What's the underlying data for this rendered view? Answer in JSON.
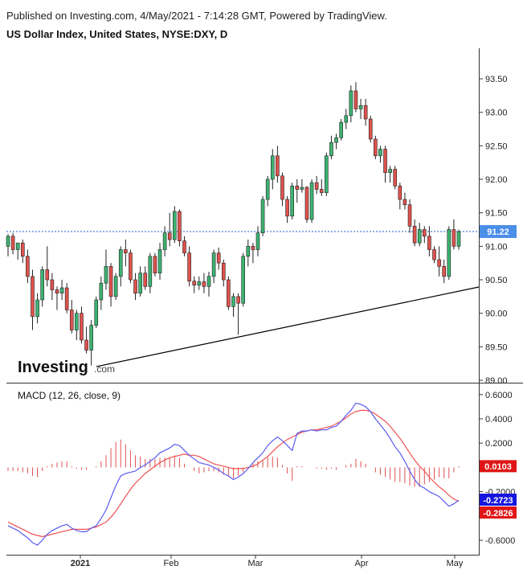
{
  "header": {
    "published": "Published on Investing.com, 4/May/2021 - 7:14:28 GMT, Powered by TradingView.",
    "title": "US Dollar Index, United States, NYSE:DXY, D"
  },
  "logo": "Investing",
  "logo_suffix": ".com",
  "colors": {
    "up": "#3cb371",
    "down": "#e0524d",
    "macd_line": "#5b5bf0",
    "signal_line": "#f05050",
    "histogram": "#e05050",
    "trendline": "#000000",
    "price_badge": "#4a8fe8",
    "macd_badge": "#1515e0",
    "signal_badge": "#e01515"
  },
  "chart_data": [
    {
      "type": "candlestick",
      "title": "US Dollar Index, United States, NYSE:DXY, D",
      "ylim": [
        89.0,
        93.75
      ],
      "y_ticks": [
        "93.50",
        "93.00",
        "92.50",
        "92.00",
        "91.50",
        "91.00",
        "90.50",
        "90.00",
        "89.50",
        "89.00"
      ],
      "x_ticks": [
        "2021",
        "Feb",
        "Mar",
        "Apr",
        "May"
      ],
      "last_price": "91.22",
      "candles": [
        {
          "o": 91.0,
          "h": 91.18,
          "l": 90.85,
          "c": 91.15
        },
        {
          "o": 91.15,
          "h": 91.2,
          "l": 90.88,
          "c": 90.95
        },
        {
          "o": 90.95,
          "h": 91.05,
          "l": 90.8,
          "c": 91.05
        },
        {
          "o": 91.05,
          "h": 91.1,
          "l": 90.75,
          "c": 90.85
        },
        {
          "o": 90.85,
          "h": 90.95,
          "l": 90.45,
          "c": 90.55
        },
        {
          "o": 90.55,
          "h": 90.65,
          "l": 89.75,
          "c": 89.95
        },
        {
          "o": 89.95,
          "h": 90.3,
          "l": 89.85,
          "c": 90.2
        },
        {
          "o": 90.2,
          "h": 90.7,
          "l": 90.1,
          "c": 90.65
        },
        {
          "o": 90.65,
          "h": 91.0,
          "l": 90.4,
          "c": 90.5
        },
        {
          "o": 90.5,
          "h": 90.6,
          "l": 90.2,
          "c": 90.35
        },
        {
          "o": 90.35,
          "h": 90.4,
          "l": 90.05,
          "c": 90.3
        },
        {
          "o": 90.3,
          "h": 90.5,
          "l": 90.2,
          "c": 90.38
        },
        {
          "o": 90.38,
          "h": 90.45,
          "l": 90.0,
          "c": 90.05
        },
        {
          "o": 90.05,
          "h": 90.2,
          "l": 89.7,
          "c": 89.75
        },
        {
          "o": 89.75,
          "h": 90.05,
          "l": 89.6,
          "c": 90.0
        },
        {
          "o": 90.0,
          "h": 90.1,
          "l": 89.55,
          "c": 89.6
        },
        {
          "o": 89.6,
          "h": 89.8,
          "l": 89.4,
          "c": 89.45
        },
        {
          "o": 89.45,
          "h": 89.9,
          "l": 89.22,
          "c": 89.82
        },
        {
          "o": 89.82,
          "h": 90.25,
          "l": 89.78,
          "c": 90.2
        },
        {
          "o": 90.2,
          "h": 90.55,
          "l": 90.05,
          "c": 90.45
        },
        {
          "o": 90.45,
          "h": 90.95,
          "l": 90.35,
          "c": 90.7
        },
        {
          "o": 90.7,
          "h": 90.75,
          "l": 90.1,
          "c": 90.25
        },
        {
          "o": 90.25,
          "h": 90.6,
          "l": 90.2,
          "c": 90.55
        },
        {
          "o": 90.55,
          "h": 91.0,
          "l": 90.4,
          "c": 90.95
        },
        {
          "o": 90.95,
          "h": 91.1,
          "l": 90.7,
          "c": 90.9
        },
        {
          "o": 90.9,
          "h": 90.95,
          "l": 90.45,
          "c": 90.5
        },
        {
          "o": 90.5,
          "h": 90.6,
          "l": 90.2,
          "c": 90.3
        },
        {
          "o": 90.3,
          "h": 90.7,
          "l": 90.25,
          "c": 90.6
        },
        {
          "o": 90.6,
          "h": 90.7,
          "l": 90.35,
          "c": 90.4
        },
        {
          "o": 90.4,
          "h": 90.9,
          "l": 90.3,
          "c": 90.85
        },
        {
          "o": 90.85,
          "h": 90.9,
          "l": 90.55,
          "c": 90.6
        },
        {
          "o": 90.6,
          "h": 91.05,
          "l": 90.5,
          "c": 90.95
        },
        {
          "o": 90.95,
          "h": 91.3,
          "l": 90.85,
          "c": 91.2
        },
        {
          "o": 91.2,
          "h": 91.5,
          "l": 91.0,
          "c": 91.1
        },
        {
          "o": 91.1,
          "h": 91.6,
          "l": 91.05,
          "c": 91.52
        },
        {
          "o": 91.52,
          "h": 91.55,
          "l": 91.0,
          "c": 91.08
        },
        {
          "o": 91.08,
          "h": 91.15,
          "l": 90.85,
          "c": 90.9
        },
        {
          "o": 90.9,
          "h": 91.0,
          "l": 90.4,
          "c": 90.48
        },
        {
          "o": 90.48,
          "h": 90.55,
          "l": 90.3,
          "c": 90.42
        },
        {
          "o": 90.42,
          "h": 90.55,
          "l": 90.35,
          "c": 90.47
        },
        {
          "o": 90.47,
          "h": 90.6,
          "l": 90.3,
          "c": 90.4
        },
        {
          "o": 90.4,
          "h": 90.62,
          "l": 90.25,
          "c": 90.55
        },
        {
          "o": 90.55,
          "h": 90.95,
          "l": 90.45,
          "c": 90.9
        },
        {
          "o": 90.9,
          "h": 90.98,
          "l": 90.65,
          "c": 90.75
        },
        {
          "o": 90.75,
          "h": 90.8,
          "l": 90.4,
          "c": 90.5
        },
        {
          "o": 90.5,
          "h": 90.55,
          "l": 90.05,
          "c": 90.1
        },
        {
          "o": 90.1,
          "h": 90.3,
          "l": 89.95,
          "c": 90.25
        },
        {
          "o": 90.25,
          "h": 90.3,
          "l": 89.68,
          "c": 90.15
        },
        {
          "o": 90.15,
          "h": 90.9,
          "l": 90.1,
          "c": 90.85
        },
        {
          "o": 90.85,
          "h": 91.1,
          "l": 90.7,
          "c": 91.0
        },
        {
          "o": 91.0,
          "h": 91.05,
          "l": 90.75,
          "c": 90.95
        },
        {
          "o": 90.95,
          "h": 91.3,
          "l": 90.85,
          "c": 91.2
        },
        {
          "o": 91.2,
          "h": 91.75,
          "l": 91.15,
          "c": 91.7
        },
        {
          "o": 91.7,
          "h": 92.05,
          "l": 91.6,
          "c": 92.0
        },
        {
          "o": 92.0,
          "h": 92.45,
          "l": 91.85,
          "c": 92.35
        },
        {
          "o": 92.35,
          "h": 92.5,
          "l": 91.95,
          "c": 92.05
        },
        {
          "o": 92.05,
          "h": 92.1,
          "l": 91.6,
          "c": 91.7
        },
        {
          "o": 91.7,
          "h": 91.75,
          "l": 91.35,
          "c": 91.45
        },
        {
          "o": 91.45,
          "h": 91.95,
          "l": 91.4,
          "c": 91.9
        },
        {
          "o": 91.9,
          "h": 92.0,
          "l": 91.65,
          "c": 91.85
        },
        {
          "o": 91.85,
          "h": 92.0,
          "l": 91.8,
          "c": 91.88
        },
        {
          "o": 91.88,
          "h": 91.9,
          "l": 91.35,
          "c": 91.4
        },
        {
          "o": 91.4,
          "h": 92.0,
          "l": 91.35,
          "c": 91.95
        },
        {
          "o": 91.95,
          "h": 92.05,
          "l": 91.78,
          "c": 91.85
        },
        {
          "o": 91.85,
          "h": 92.0,
          "l": 91.75,
          "c": 91.8
        },
        {
          "o": 91.8,
          "h": 92.4,
          "l": 91.75,
          "c": 92.35
        },
        {
          "o": 92.35,
          "h": 92.65,
          "l": 92.3,
          "c": 92.55
        },
        {
          "o": 92.55,
          "h": 92.68,
          "l": 92.45,
          "c": 92.62
        },
        {
          "o": 92.62,
          "h": 92.9,
          "l": 92.58,
          "c": 92.85
        },
        {
          "o": 92.85,
          "h": 93.05,
          "l": 92.75,
          "c": 92.95
        },
        {
          "o": 92.95,
          "h": 93.4,
          "l": 92.85,
          "c": 93.32
        },
        {
          "o": 93.32,
          "h": 93.45,
          "l": 93.0,
          "c": 93.05
        },
        {
          "o": 93.05,
          "h": 93.2,
          "l": 92.9,
          "c": 93.1
        },
        {
          "o": 93.1,
          "h": 93.2,
          "l": 92.8,
          "c": 92.9
        },
        {
          "o": 92.9,
          "h": 92.95,
          "l": 92.55,
          "c": 92.6
        },
        {
          "o": 92.6,
          "h": 92.65,
          "l": 92.3,
          "c": 92.35
        },
        {
          "o": 92.35,
          "h": 92.5,
          "l": 92.25,
          "c": 92.45
        },
        {
          "o": 92.45,
          "h": 92.5,
          "l": 91.95,
          "c": 92.1
        },
        {
          "o": 92.1,
          "h": 92.2,
          "l": 91.95,
          "c": 92.15
        },
        {
          "o": 92.15,
          "h": 92.2,
          "l": 91.85,
          "c": 91.9
        },
        {
          "o": 91.9,
          "h": 91.95,
          "l": 91.55,
          "c": 91.7
        },
        {
          "o": 91.7,
          "h": 91.8,
          "l": 91.55,
          "c": 91.62
        },
        {
          "o": 91.62,
          "h": 91.7,
          "l": 91.2,
          "c": 91.3
        },
        {
          "o": 91.3,
          "h": 91.4,
          "l": 91.0,
          "c": 91.05
        },
        {
          "o": 91.05,
          "h": 91.35,
          "l": 91.0,
          "c": 91.25
        },
        {
          "o": 91.25,
          "h": 91.3,
          "l": 91.05,
          "c": 91.15
        },
        {
          "o": 91.15,
          "h": 91.3,
          "l": 90.85,
          "c": 90.95
        },
        {
          "o": 90.95,
          "h": 91.0,
          "l": 90.75,
          "c": 90.8
        },
        {
          "o": 90.8,
          "h": 91.0,
          "l": 90.55,
          "c": 90.7
        },
        {
          "o": 90.7,
          "h": 90.8,
          "l": 90.45,
          "c": 90.55
        },
        {
          "o": 90.55,
          "h": 91.3,
          "l": 90.5,
          "c": 91.25
        },
        {
          "o": 91.25,
          "h": 91.4,
          "l": 90.95,
          "c": 91.0
        },
        {
          "o": 91.0,
          "h": 91.25,
          "l": 90.95,
          "c": 91.22
        }
      ]
    },
    {
      "type": "line",
      "title": "MACD (12, 26, close, 9)",
      "ylim": [
        -0.72,
        0.65
      ],
      "y_ticks": [
        "0.6000",
        "0.4000",
        "0.2000",
        "-0.2000",
        "-0.6000"
      ],
      "x_ticks": [
        "2021",
        "Feb",
        "Mar",
        "Apr",
        "May"
      ],
      "last_values": {
        "histogram": "0.0103",
        "macd": "-0.2723",
        "signal": "-0.2826"
      },
      "series": [
        {
          "name": "MACD",
          "values": [
            -0.48,
            -0.5,
            -0.52,
            -0.55,
            -0.58,
            -0.62,
            -0.64,
            -0.6,
            -0.55,
            -0.52,
            -0.5,
            -0.48,
            -0.47,
            -0.5,
            -0.52,
            -0.53,
            -0.53,
            -0.5,
            -0.48,
            -0.42,
            -0.35,
            -0.25,
            -0.15,
            -0.07,
            -0.05,
            -0.04,
            -0.03,
            0.0,
            0.02,
            0.05,
            0.08,
            0.12,
            0.14,
            0.16,
            0.19,
            0.18,
            0.14,
            0.1,
            0.07,
            0.04,
            0.03,
            0.02,
            0.0,
            -0.02,
            -0.05,
            -0.07,
            -0.1,
            -0.08,
            -0.05,
            -0.01,
            0.04,
            0.08,
            0.12,
            0.18,
            0.22,
            0.25,
            0.22,
            0.18,
            0.14,
            0.28,
            0.3,
            0.3,
            0.31,
            0.3,
            0.31,
            0.31,
            0.33,
            0.34,
            0.38,
            0.43,
            0.47,
            0.53,
            0.52,
            0.5,
            0.46,
            0.4,
            0.35,
            0.3,
            0.24,
            0.17,
            0.12,
            0.05,
            -0.03,
            -0.1,
            -0.15,
            -0.17,
            -0.2,
            -0.22,
            -0.24,
            -0.28,
            -0.32,
            -0.3,
            -0.27
          ]
        },
        {
          "name": "Signal",
          "values": [
            -0.45,
            -0.47,
            -0.49,
            -0.51,
            -0.53,
            -0.55,
            -0.56,
            -0.57,
            -0.56,
            -0.55,
            -0.54,
            -0.53,
            -0.52,
            -0.51,
            -0.51,
            -0.51,
            -0.51,
            -0.5,
            -0.49,
            -0.47,
            -0.45,
            -0.41,
            -0.36,
            -0.3,
            -0.24,
            -0.18,
            -0.13,
            -0.09,
            -0.05,
            -0.02,
            0.01,
            0.04,
            0.06,
            0.08,
            0.09,
            0.1,
            0.11,
            0.1,
            0.1,
            0.09,
            0.07,
            0.05,
            0.03,
            0.02,
            0.01,
            0.0,
            -0.01,
            -0.01,
            -0.01,
            0.0,
            0.01,
            0.03,
            0.06,
            0.09,
            0.13,
            0.17,
            0.2,
            0.23,
            0.25,
            0.27,
            0.29,
            0.3,
            0.31,
            0.31,
            0.32,
            0.33,
            0.34,
            0.36,
            0.38,
            0.41,
            0.44,
            0.46,
            0.47,
            0.47,
            0.46,
            0.44,
            0.41,
            0.38,
            0.34,
            0.29,
            0.24,
            0.18,
            0.12,
            0.06,
            0.01,
            -0.03,
            -0.08,
            -0.12,
            -0.16,
            -0.19,
            -0.23,
            -0.26,
            -0.28
          ]
        }
      ],
      "histogram": [
        -0.03,
        -0.03,
        -0.03,
        -0.04,
        -0.05,
        -0.07,
        -0.08,
        -0.03,
        0.01,
        0.03,
        0.04,
        0.05,
        0.05,
        0.01,
        -0.01,
        -0.02,
        -0.02,
        0.0,
        0.01,
        0.05,
        0.1,
        0.16,
        0.21,
        0.23,
        0.19,
        0.14,
        0.1,
        0.09,
        0.07,
        0.07,
        0.07,
        0.08,
        0.08,
        0.08,
        0.1,
        0.08,
        0.03,
        0.0,
        -0.03,
        -0.05,
        -0.04,
        -0.03,
        -0.03,
        -0.04,
        -0.06,
        -0.07,
        -0.09,
        -0.07,
        -0.04,
        -0.01,
        0.03,
        0.05,
        0.06,
        0.09,
        0.09,
        0.08,
        0.02,
        -0.05,
        -0.11,
        0.01,
        0.01,
        0.0,
        0.0,
        -0.01,
        -0.01,
        -0.02,
        -0.01,
        -0.02,
        0.0,
        0.02,
        0.03,
        0.07,
        0.05,
        0.03,
        0.0,
        -0.04,
        -0.06,
        -0.08,
        -0.1,
        -0.12,
        -0.12,
        -0.13,
        -0.15,
        -0.16,
        -0.16,
        -0.14,
        -0.12,
        -0.1,
        -0.08,
        -0.09,
        -0.09,
        -0.04,
        0.01
      ]
    }
  ]
}
